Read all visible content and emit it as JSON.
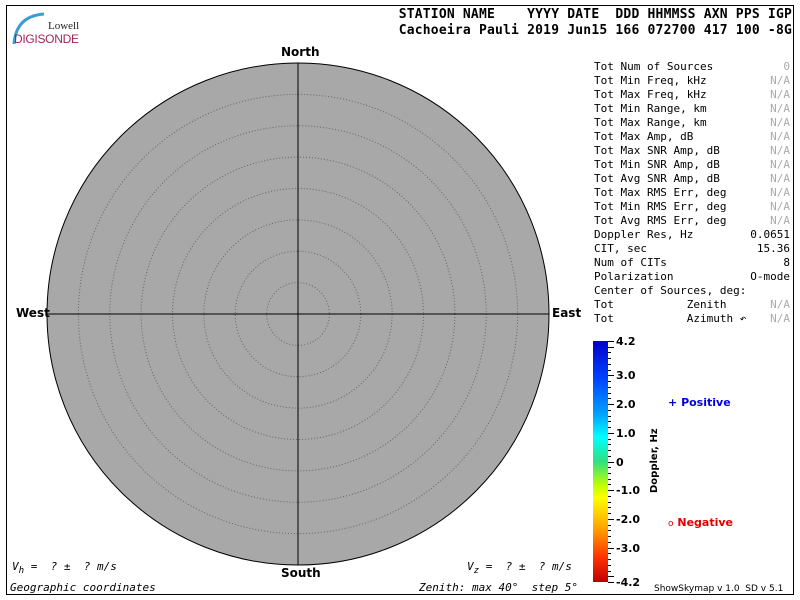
{
  "logo": {
    "line1": "Lowell",
    "line2": "DIGISONDE"
  },
  "header": {
    "labels": "STATION NAME    YYYY DATE  DDD HHMMSS AXN PPS IGP",
    "values": "Cachoeira Pauli 2019 Jun15 166 072700 417 100 -8G"
  },
  "directions": {
    "north": "North",
    "south": "South",
    "east": "East",
    "west": "West"
  },
  "stats": [
    {
      "label": "Tot Num of Sources",
      "value": "0",
      "dim": true
    },
    {
      "label": "Tot Min Freq, kHz",
      "value": "N/A",
      "dim": true
    },
    {
      "label": "Tot Max Freq, kHz",
      "value": "N/A",
      "dim": true
    },
    {
      "label": "Tot Min Range, km",
      "value": "N/A",
      "dim": true
    },
    {
      "label": "Tot Max Range, km",
      "value": "N/A",
      "dim": true
    },
    {
      "label": "Tot Max Amp, dB",
      "value": "N/A",
      "dim": true
    },
    {
      "label": "Tot Max SNR Amp, dB",
      "value": "N/A",
      "dim": true
    },
    {
      "label": "Tot Min SNR Amp, dB",
      "value": "N/A",
      "dim": true
    },
    {
      "label": "Tot Avg SNR Amp, dB",
      "value": "N/A",
      "dim": true
    },
    {
      "label": "Tot Max RMS Err, deg",
      "value": "N/A",
      "dim": true
    },
    {
      "label": "Tot Min RMS Err, deg",
      "value": "N/A",
      "dim": true
    },
    {
      "label": "Tot Avg RMS Err, deg",
      "value": "N/A",
      "dim": true
    },
    {
      "label": "Doppler Res, Hz",
      "value": "0.0651",
      "dim": false
    },
    {
      "label": "CIT, sec",
      "value": "15.36",
      "dim": false
    },
    {
      "label": "Num of CITs",
      "value": "8",
      "dim": false
    },
    {
      "label": "Polarization",
      "value": "O-mode",
      "dim": false
    },
    {
      "label": "Center of Sources, deg:",
      "value": "",
      "dim": false
    },
    {
      "label": "Tot           Zenith",
      "value": "N/A",
      "dim": true
    },
    {
      "label": "Tot           Azimuth ↶",
      "value": "N/A",
      "dim": true
    }
  ],
  "colorbar": {
    "title": "Doppler, Hz",
    "ticks": [
      "4.2",
      "3.0",
      "2.0",
      "1.0",
      "0",
      "-1.0",
      "-2.0",
      "-3.0",
      "-4.2"
    ],
    "range": [
      -4.2,
      4.2
    ]
  },
  "legend": {
    "positive_symbol": "+",
    "positive": "Positive",
    "negative_symbol": "o",
    "negative": "Negative",
    "positive_color": "#0000e0",
    "negative_color": "#e00000"
  },
  "footer": {
    "vh": "V",
    "vh_sub": "h",
    "vh_rest": " =  ? ±  ? m/s",
    "vz": "V",
    "vz_sub": "z",
    "vz_rest": " =  ? ±  ? m/s",
    "coords": "Geographic coordinates",
    "zenith": "Zenith: max 40°  step 5°",
    "version": "ShowSkymap v 1.0  SD v 5.1"
  },
  "plot": {
    "zenith_max_deg": 40,
    "zenith_step_deg": 5,
    "fill": "#a8a8a8"
  }
}
